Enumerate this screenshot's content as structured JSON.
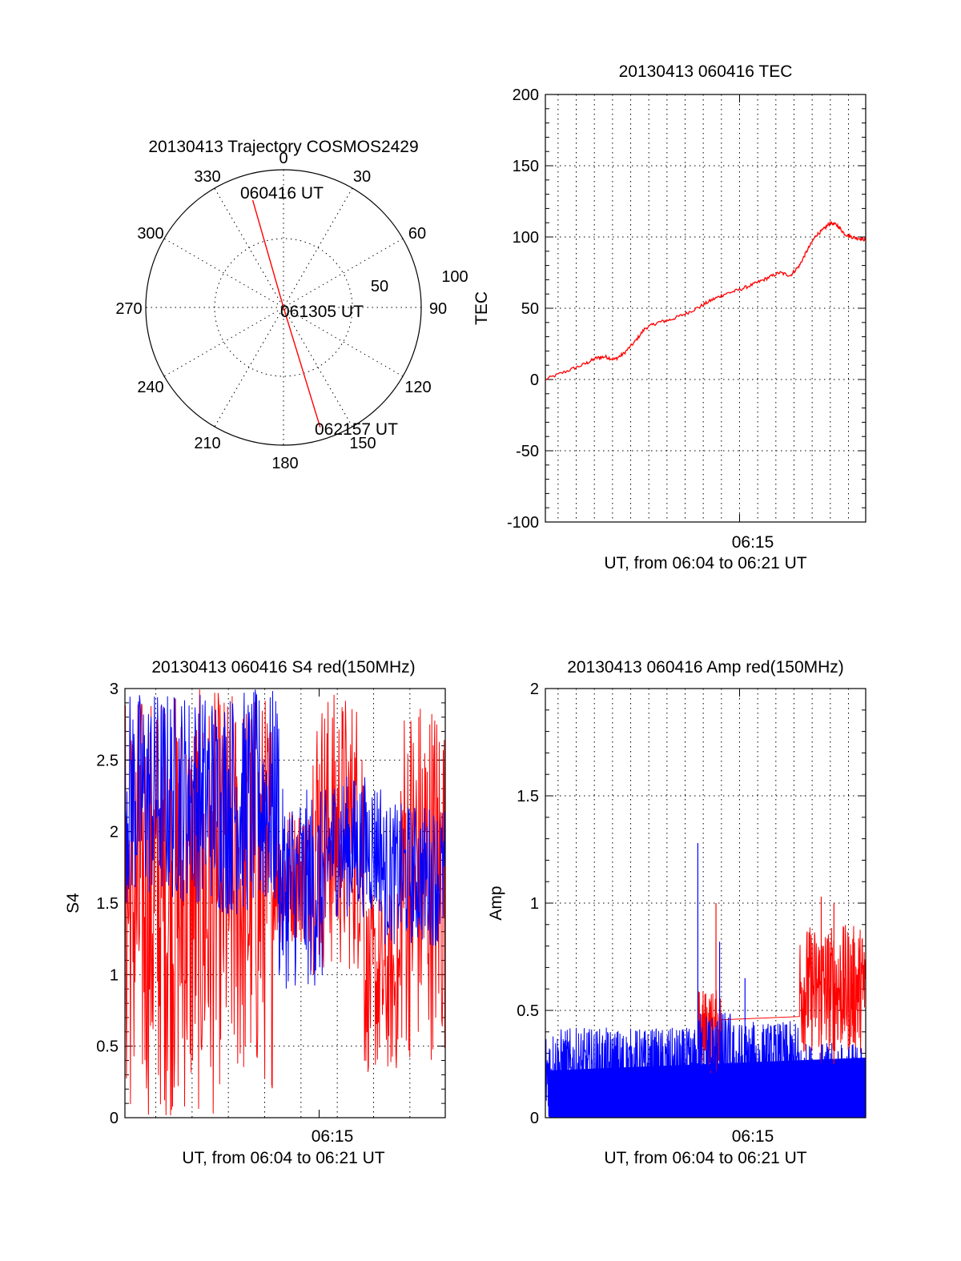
{
  "chart_data": [
    {
      "type": "polar",
      "title": "20130413 Trajectory COSMOS2429",
      "angle_labels": [
        "0",
        "30",
        "60",
        "90",
        "120",
        "150",
        "180",
        "210",
        "240",
        "270",
        "300",
        "330"
      ],
      "radial_labels": [
        "50",
        "100"
      ],
      "rlim": [
        0,
        100
      ],
      "grid": true,
      "series": [
        {
          "color": "#ff0000",
          "points": [
            {
              "azimuth": 344,
              "r": 81
            },
            {
              "azimuth": 180,
              "r": 0
            },
            {
              "azimuth": 163,
              "r": 91
            }
          ]
        }
      ],
      "annotations": [
        {
          "text": "060416 UT",
          "azimuth": 344,
          "r": 81
        },
        {
          "text": "061305 UT",
          "azimuth": 180,
          "r": 0
        },
        {
          "text": "062157 UT",
          "azimuth": 163,
          "r": 91
        }
      ]
    },
    {
      "type": "line",
      "title": "20130413 060416 TEC",
      "xlabel": "UT, from 06:04 to 06:21 UT",
      "ylabel": "TEC",
      "xlim": [
        364.3,
        381.95
      ],
      "ylim": [
        -100,
        200
      ],
      "yticks": [
        "200",
        "150",
        "100",
        "50",
        "0",
        "-50",
        "-100"
      ],
      "xticks": [
        {
          "x": 375,
          "label": "06:15"
        }
      ],
      "grid": true,
      "grid_x_step_min": 1,
      "series": [
        {
          "color": "#ff0000",
          "x": [
            364.3,
            365.5,
            366.5,
            367.1,
            367.6,
            368.1,
            368.6,
            369.2,
            369.8,
            370.5,
            371.2,
            372.0,
            372.8,
            373.5,
            374.2,
            375.0,
            375.8,
            376.5,
            377.2,
            377.8,
            378.3,
            378.7,
            379.2,
            379.6,
            380.0,
            380.4,
            380.8,
            381.2,
            381.6,
            381.95
          ],
          "y": [
            0,
            6,
            11,
            15,
            16,
            14,
            18,
            26,
            36,
            40,
            42,
            46,
            51,
            56,
            60,
            63,
            67,
            71,
            75,
            73,
            80,
            90,
            101,
            105,
            110,
            108,
            102,
            100,
            99,
            98
          ]
        }
      ]
    },
    {
      "type": "line",
      "title": "20130413 060416 S4 red(150MHz)",
      "xlabel": "UT, from 06:04 to 06:21 UT",
      "ylabel": "S4",
      "xlim": [
        364.3,
        381.95
      ],
      "ylim": [
        0,
        3
      ],
      "yticks": [
        "3",
        "2.5",
        "2",
        "1.5",
        "1",
        "0.5",
        "0"
      ],
      "xticks": [
        {
          "x": 375,
          "label": "06:15"
        }
      ],
      "grid": true,
      "grid_x_step_min": 2,
      "series": [
        {
          "color": "#ff0000",
          "noise_bands": [
            {
              "x0": 364.3,
              "x1": 369.3,
              "lo": 0.0,
              "hi": 3.0
            },
            {
              "x0": 369.3,
              "x1": 372.5,
              "lo": 0.2,
              "hi": 3.0
            },
            {
              "x0": 372.5,
              "x1": 374.5,
              "lo": 1.2,
              "hi": 2.2
            },
            {
              "x0": 374.5,
              "x1": 377.5,
              "lo": 1.0,
              "hi": 3.0
            },
            {
              "x0": 377.5,
              "x1": 379.5,
              "lo": 0.3,
              "hi": 1.6
            },
            {
              "x0": 379.5,
              "x1": 381.95,
              "lo": 0.4,
              "hi": 3.0
            }
          ]
        },
        {
          "color": "#0000ff",
          "noise_bands": [
            {
              "x0": 364.3,
              "x1": 369.3,
              "lo": 1.5,
              "hi": 3.0
            },
            {
              "x0": 369.3,
              "x1": 372.8,
              "lo": 1.4,
              "hi": 3.0
            },
            {
              "x0": 372.8,
              "x1": 375.5,
              "lo": 0.9,
              "hi": 2.3
            },
            {
              "x0": 375.5,
              "x1": 378.5,
              "lo": 1.4,
              "hi": 2.4
            },
            {
              "x0": 378.5,
              "x1": 381.95,
              "lo": 1.2,
              "hi": 2.2
            }
          ]
        }
      ]
    },
    {
      "type": "line",
      "title": "20130413 060416 Amp red(150MHz)",
      "xlabel": "UT, from 06:04 to 06:21 UT",
      "ylabel": "Amp",
      "xlim": [
        364.3,
        381.95
      ],
      "ylim": [
        0,
        2
      ],
      "yticks": [
        "2",
        "1.5",
        "1",
        "0.5",
        "0"
      ],
      "xticks": [
        {
          "x": 375,
          "label": "06:15"
        }
      ],
      "grid": true,
      "grid_x_step_min": 1,
      "series": [
        {
          "color": "#ff0000",
          "noise_bands": [
            {
              "x0": 372.7,
              "x1": 374.0,
              "lo": 0.2,
              "hi": 0.6
            },
            {
              "x0": 378.3,
              "x1": 381.95,
              "lo": 0.3,
              "hi": 0.9
            }
          ],
          "peaks": [
            {
              "x": 373.7,
              "y": 1.0
            },
            {
              "x": 379.5,
              "y": 1.03
            },
            {
              "x": 380.2,
              "y": 1.0
            }
          ]
        },
        {
          "color": "#0000ff",
          "noise_bands": [
            {
              "x0": 364.3,
              "x1": 372.7,
              "lo": 0.0,
              "hi": 0.42
            },
            {
              "x0": 372.7,
              "x1": 374.5,
              "lo": 0.0,
              "hi": 0.5
            },
            {
              "x0": 374.5,
              "x1": 378.3,
              "lo": 0.0,
              "hi": 0.45
            },
            {
              "x0": 378.3,
              "x1": 381.95,
              "lo": 0.0,
              "hi": 0.35
            }
          ],
          "peaks": [
            {
              "x": 372.7,
              "y": 1.28
            },
            {
              "x": 373.9,
              "y": 0.82
            },
            {
              "x": 375.3,
              "y": 0.65
            }
          ]
        }
      ]
    }
  ]
}
